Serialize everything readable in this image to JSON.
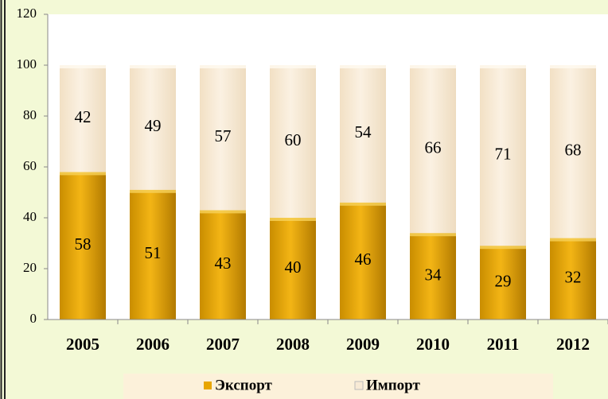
{
  "chart_data": {
    "type": "stacked_bar",
    "categories": [
      "2005",
      "2006",
      "2007",
      "2008",
      "2009",
      "2010",
      "2011",
      "2012"
    ],
    "series": [
      {
        "name": "Экспорт",
        "color": "#e8a600",
        "values": [
          58,
          51,
          43,
          40,
          46,
          34,
          29,
          32
        ]
      },
      {
        "name": "Импорт",
        "color": "#f8ead5",
        "values": [
          42,
          49,
          57,
          60,
          54,
          66,
          71,
          68
        ]
      }
    ],
    "ylim": [
      0,
      120
    ],
    "yticks": [
      0,
      20,
      40,
      60,
      80,
      100,
      120
    ],
    "legend": "bottom"
  }
}
